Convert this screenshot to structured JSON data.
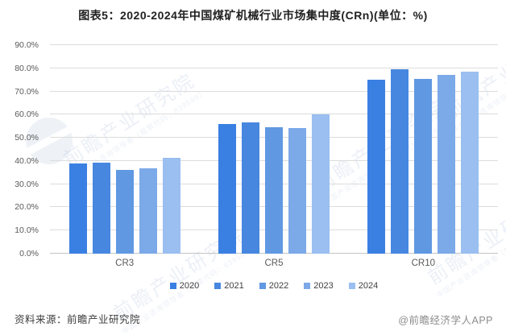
{
  "header": {
    "title": "图表5：2020-2024年中国煤矿机械行业市场集中度(CRn)(单位：%)"
  },
  "chart_data": {
    "type": "bar",
    "title": "图表5：2020-2024年中国煤矿机械行业市场集中度(CRn)(单位：%)",
    "categories": [
      "CR3",
      "CR5",
      "CR10"
    ],
    "series": [
      {
        "name": "2020",
        "color": "#3A80E2",
        "values": [
          39.0,
          55.9,
          75.1
        ]
      },
      {
        "name": "2021",
        "color": "#4787E0",
        "values": [
          39.3,
          56.6,
          79.6
        ]
      },
      {
        "name": "2022",
        "color": "#6098E2",
        "values": [
          36.3,
          54.6,
          75.5
        ]
      },
      {
        "name": "2023",
        "color": "#7CA9E8",
        "values": [
          36.9,
          54.1,
          77.3
        ]
      },
      {
        "name": "2024",
        "color": "#9ABFF0",
        "values": [
          41.5,
          60.0,
          78.5
        ]
      }
    ],
    "xlabel": "",
    "ylabel": "",
    "ylim": [
      0,
      90
    ],
    "y_tick_step": 10,
    "y_tick_format": "percent_one_decimal",
    "grid": true,
    "legend_position": "bottom",
    "colors": {
      "gridline": "#dcdcdc",
      "axis_text": "#595959"
    }
  },
  "footer": {
    "source": "资料来源：前瞻产业研究院",
    "credit": "@前瞻经济学人APP"
  },
  "watermark": {
    "text": "前瞻产业研究院",
    "subtext": "中国产业咨询领导者（股票代码：839599）"
  }
}
